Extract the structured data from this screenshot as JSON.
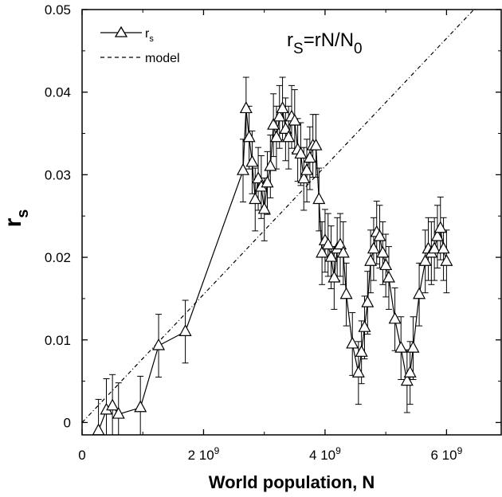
{
  "chart_data": {
    "type": "scatter",
    "title": "",
    "xlabel": "World population, N",
    "ylabel": "r",
    "ylabel_sub": "s",
    "xlim": [
      0,
      6900000000
    ],
    "ylim": [
      -0.0015,
      0.05
    ],
    "x_ticks": [
      {
        "value": 0,
        "label": "0"
      },
      {
        "value": 2000000000,
        "label": "2 10",
        "exp": "9"
      },
      {
        "value": 4000000000,
        "label": "4 10",
        "exp": "9"
      },
      {
        "value": 6000000000,
        "label": "6 10",
        "exp": "9"
      }
    ],
    "y_ticks": [
      {
        "value": 0,
        "label": "0"
      },
      {
        "value": 0.01,
        "label": "0.01"
      },
      {
        "value": 0.02,
        "label": "0.02"
      },
      {
        "value": 0.03,
        "label": "0.03"
      },
      {
        "value": 0.04,
        "label": "0.04"
      },
      {
        "value": 0.05,
        "label": "0.05"
      }
    ],
    "annotation": {
      "main": "r",
      "sub1": "S",
      "mid": "=rN/N",
      "sub2": "0"
    },
    "legend": {
      "position": "top-left",
      "entries": [
        {
          "label": "r",
          "sub": "s",
          "style": "solid-triangle"
        },
        {
          "label": "model",
          "style": "dashed"
        }
      ]
    },
    "series": [
      {
        "name": "r_s",
        "marker": "triangle",
        "line": "solid",
        "error": 0.0038,
        "points": [
          [
            270000000,
            -0.001
          ],
          [
            400000000,
            0.0015
          ],
          [
            500000000,
            0.002
          ],
          [
            600000000,
            0.001
          ],
          [
            960000000,
            0.0018
          ],
          [
            1260000000,
            0.0093
          ],
          [
            1700000000,
            0.011
          ],
          [
            2650000000,
            0.0305
          ],
          [
            2700000000,
            0.038
          ],
          [
            2750000000,
            0.0345
          ],
          [
            2800000000,
            0.0315
          ],
          [
            2850000000,
            0.027
          ],
          [
            2900000000,
            0.0295
          ],
          [
            2950000000,
            0.0285
          ],
          [
            3000000000,
            0.0258
          ],
          [
            3050000000,
            0.029
          ],
          [
            3100000000,
            0.031
          ],
          [
            3150000000,
            0.036
          ],
          [
            3200000000,
            0.0345
          ],
          [
            3250000000,
            0.037
          ],
          [
            3300000000,
            0.038
          ],
          [
            3350000000,
            0.0355
          ],
          [
            3400000000,
            0.0345
          ],
          [
            3450000000,
            0.037
          ],
          [
            3500000000,
            0.0365
          ],
          [
            3550000000,
            0.033
          ],
          [
            3600000000,
            0.0325
          ],
          [
            3650000000,
            0.0295
          ],
          [
            3700000000,
            0.0305
          ],
          [
            3750000000,
            0.032
          ],
          [
            3800000000,
            0.0335
          ],
          [
            3850000000,
            0.0335
          ],
          [
            3900000000,
            0.027
          ],
          [
            3950000000,
            0.0205
          ],
          [
            4000000000,
            0.022
          ],
          [
            4050000000,
            0.0215
          ],
          [
            4100000000,
            0.02
          ],
          [
            4150000000,
            0.0175
          ],
          [
            4200000000,
            0.021
          ],
          [
            4250000000,
            0.0215
          ],
          [
            4300000000,
            0.0205
          ],
          [
            4350000000,
            0.0155
          ],
          [
            4450000000,
            0.0095
          ],
          [
            4550000000,
            0.006
          ],
          [
            4600000000,
            0.0085
          ],
          [
            4650000000,
            0.0115
          ],
          [
            4700000000,
            0.0145
          ],
          [
            4750000000,
            0.0195
          ],
          [
            4800000000,
            0.021
          ],
          [
            4850000000,
            0.023
          ],
          [
            4900000000,
            0.0225
          ],
          [
            4950000000,
            0.0205
          ],
          [
            5000000000,
            0.019
          ],
          [
            5050000000,
            0.0175
          ],
          [
            5150000000,
            0.0125
          ],
          [
            5250000000,
            0.009
          ],
          [
            5350000000,
            0.005
          ],
          [
            5400000000,
            0.006
          ],
          [
            5450000000,
            0.009
          ],
          [
            5550000000,
            0.0155
          ],
          [
            5650000000,
            0.0195
          ],
          [
            5700000000,
            0.021
          ],
          [
            5750000000,
            0.0205
          ],
          [
            5800000000,
            0.021
          ],
          [
            5850000000,
            0.0225
          ],
          [
            5900000000,
            0.0235
          ],
          [
            5950000000,
            0.021
          ],
          [
            6000000000,
            0.0195
          ]
        ]
      },
      {
        "name": "model",
        "line": "dashed",
        "points": [
          [
            0,
            0
          ],
          [
            6450000000,
            0.05
          ]
        ]
      }
    ]
  }
}
